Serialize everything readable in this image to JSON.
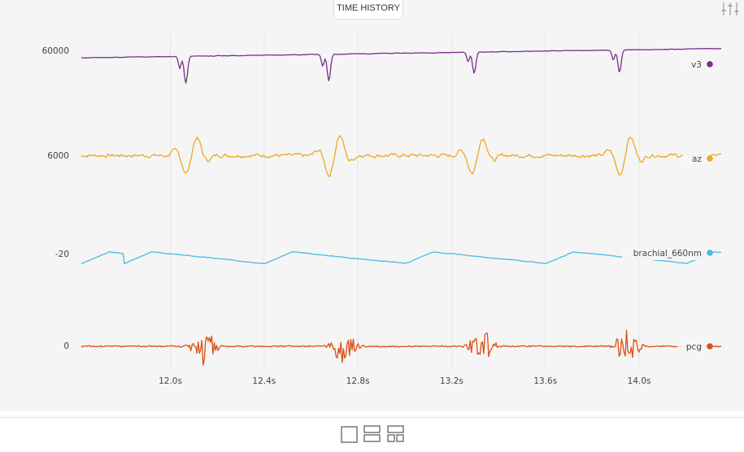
{
  "panel": {
    "title": "TIME HISTORY",
    "settings_icon": "sliders-icon"
  },
  "chart_data": {
    "type": "line",
    "title": "TIME HISTORY",
    "xlabel": "",
    "ylabel": "",
    "x_unit": "s",
    "x_range": [
      11.62,
      14.35
    ],
    "x_ticks": [
      "12.0s",
      "12.4s",
      "12.8s",
      "13.2s",
      "13.6s",
      "14.0s"
    ],
    "x_tick_values": [
      12.0,
      12.4,
      12.8,
      13.2,
      13.6,
      14.0
    ],
    "grid": "vertical",
    "series": [
      {
        "name": "v3",
        "color": "#7b2d8e",
        "scale_label": "60000",
        "scale_value": 60000,
        "baseline": 57800,
        "trend": 2000,
        "noise": 130,
        "smooth": 2,
        "events": [
          {
            "t": 12.06,
            "a": -5800
          },
          {
            "t": 12.67,
            "a": -5800
          },
          {
            "t": 13.29,
            "a": -4600
          },
          {
            "t": 13.91,
            "a": -4800
          }
        ],
        "ylim": [
          51000,
          61500
        ],
        "seed": 11
      },
      {
        "name": "az",
        "color": "#efa820",
        "scale_label": "6000",
        "scale_value": 6000,
        "baseline": 5450,
        "trend": 0,
        "noise": 260,
        "smooth": 1,
        "events": [
          {
            "t": 12.09,
            "a": 1700
          },
          {
            "t": 12.7,
            "a": 1900
          },
          {
            "t": 13.31,
            "a": 1700
          },
          {
            "t": 13.94,
            "a": 1800
          }
        ],
        "ylim": [
          3400,
          7000
        ],
        "seed": 7
      },
      {
        "name": "brachial_660nm",
        "color": "#4bb8e8",
        "scale_label": "-20",
        "scale_value": -20,
        "baseline": -20,
        "trend": 0,
        "noise": 0.9,
        "smooth": 3,
        "cycles": [
          11.62,
          11.8,
          12.4,
          13.0,
          13.6,
          14.2
        ],
        "cycle_amp": 14,
        "ylim": [
          -42,
          12
        ],
        "seed": 3
      },
      {
        "name": "pcg",
        "color": "#dc4f14",
        "scale_label": "0",
        "scale_value": 0,
        "baseline": 0,
        "trend": 0,
        "noise": 0.35,
        "smooth": 0,
        "events": [
          {
            "t": 12.14,
            "a": 10,
            "w": 0.05
          },
          {
            "t": 12.74,
            "a": 9,
            "w": 0.05
          },
          {
            "t": 13.33,
            "a": 9,
            "w": 0.05
          },
          {
            "t": 13.95,
            "a": 10,
            "w": 0.05
          }
        ],
        "ylim": [
          -11,
          11
        ],
        "seed": 5
      }
    ]
  },
  "footer": {
    "layout_single": "single-panel-layout-icon",
    "layout_stacked": "stacked-layout-icon",
    "layout_grid": "grid-layout-icon"
  }
}
